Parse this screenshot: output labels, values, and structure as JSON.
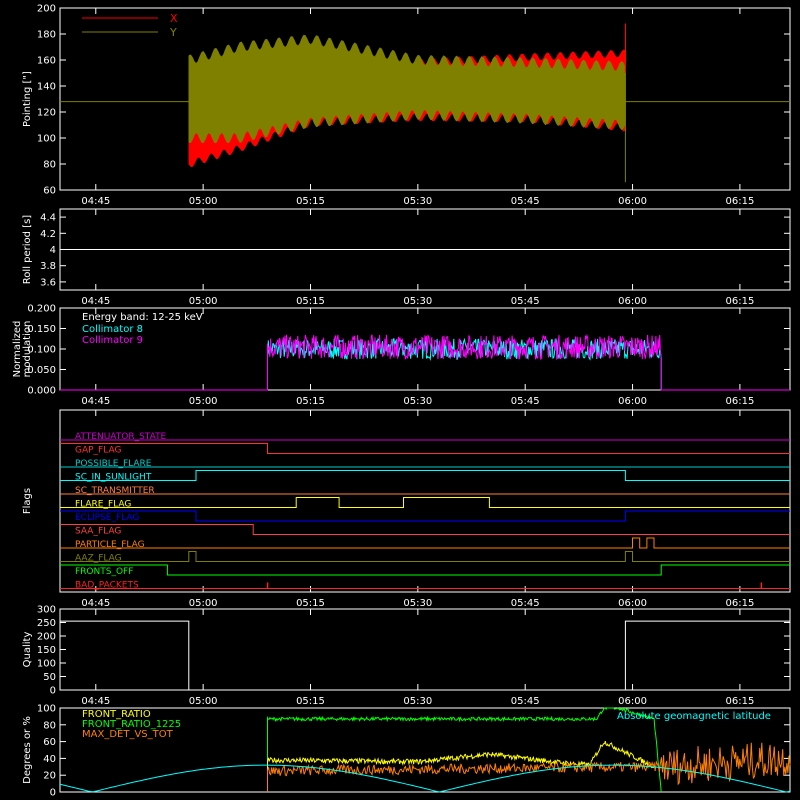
{
  "chart_data": [
    {
      "id": "pointing",
      "type": "area",
      "ylabel": "Pointing [\"]",
      "ylim": [
        60,
        200
      ],
      "yticks": [
        60,
        80,
        100,
        120,
        140,
        160,
        180,
        200
      ],
      "xticks": [
        "04:45",
        "05:00",
        "05:15",
        "05:30",
        "05:45",
        "06:00",
        "06:15"
      ],
      "legend": [
        {
          "name": "X",
          "color": "#ff0000"
        },
        {
          "name": "Y",
          "color": "#808000"
        }
      ],
      "baseline": 128,
      "active_range": [
        "04:58",
        "05:59"
      ],
      "series": [
        {
          "name": "X",
          "color": "#ff0000",
          "x": [
            "04:58",
            "05:05",
            "05:15",
            "05:30",
            "05:45",
            "05:59"
          ],
          "upper": [
            145,
            150,
            155,
            158,
            162,
            165
          ],
          "lower": [
            80,
            92,
            112,
            116,
            115,
            108
          ]
        },
        {
          "name": "Y",
          "color": "#808000",
          "x": [
            "04:58",
            "05:05",
            "05:15",
            "05:30",
            "05:45",
            "05:59"
          ],
          "upper": [
            160,
            170,
            176,
            160,
            158,
            155
          ],
          "lower": [
            100,
            100,
            112,
            118,
            115,
            110
          ]
        }
      ]
    },
    {
      "id": "roll",
      "type": "line",
      "ylabel": "Roll period [s]",
      "ylim": [
        3.5,
        4.5
      ],
      "yticks": [
        3.6,
        3.8,
        4.0,
        4.2,
        4.4
      ],
      "xticks": [
        "04:45",
        "05:00",
        "05:15",
        "05:30",
        "05:45",
        "06:00",
        "06:15"
      ],
      "series": [
        {
          "name": "",
          "color": "#ffffff",
          "x": [
            "04:40",
            "06:22"
          ],
          "y": [
            4.0,
            4.0
          ]
        }
      ]
    },
    {
      "id": "modulation",
      "type": "line",
      "ylabel": "Normalized modulation",
      "ylim": [
        0.0,
        0.2
      ],
      "yticks": [
        0.0,
        0.05,
        0.1,
        0.15,
        0.2
      ],
      "ytick_labels": [
        "0.000",
        "0.050",
        "0.100",
        "0.150",
        "0.200"
      ],
      "xticks": [
        "04:45",
        "05:00",
        "05:15",
        "05:30",
        "05:45",
        "06:00",
        "06:15"
      ],
      "annotation": "Energy band: 12-25 keV",
      "legend": [
        {
          "name": "Collimator 8",
          "color": "#00ffff"
        },
        {
          "name": "Collimator 9",
          "color": "#ff00ff"
        }
      ],
      "active_range": [
        "05:09",
        "06:04"
      ],
      "series": [
        {
          "name": "Collimator 8",
          "color": "#00ffff",
          "mean": 0.1,
          "spread": 0.025
        },
        {
          "name": "Collimator 9",
          "color": "#ff00ff",
          "mean": 0.105,
          "spread": 0.03
        }
      ]
    },
    {
      "id": "flags",
      "type": "line",
      "ylabel": "Flags",
      "xticks": [
        "04:45",
        "05:00",
        "05:15",
        "05:30",
        "05:45",
        "06:00",
        "06:15"
      ],
      "flags": [
        {
          "name": "ATTENUATOR_STATE",
          "color": "#cc00cc",
          "segments": [
            [
              "04:40",
              "06:22",
              0
            ]
          ]
        },
        {
          "name": "GAP_FLAG",
          "color": "#ff3030",
          "segments": [
            [
              "04:40",
              "05:09",
              1
            ],
            [
              "05:09",
              "06:22",
              0
            ]
          ]
        },
        {
          "name": "POSSIBLE_FLARE",
          "color": "#00cccc",
          "segments": [
            [
              "04:40",
              "06:22",
              0
            ]
          ]
        },
        {
          "name": "SC_IN_SUNLIGHT",
          "color": "#00ffff",
          "segments": [
            [
              "04:40",
              "04:59",
              0
            ],
            [
              "04:59",
              "05:59",
              1
            ],
            [
              "05:59",
              "06:22",
              0
            ]
          ]
        },
        {
          "name": "SC_TRANSMITTER",
          "color": "#ff8040",
          "segments": [
            [
              "04:40",
              "06:22",
              0
            ]
          ]
        },
        {
          "name": "FLARE_FLAG",
          "color": "#ffff00",
          "segments": [
            [
              "04:40",
              "05:13",
              0
            ],
            [
              "05:13",
              "05:19",
              1
            ],
            [
              "05:19",
              "05:28",
              0
            ],
            [
              "05:28",
              "05:40",
              1
            ],
            [
              "05:40",
              "06:22",
              0
            ]
          ]
        },
        {
          "name": "ECLIPSE_FLAG",
          "color": "#0000ff",
          "segments": [
            [
              "04:40",
              "04:59",
              1
            ],
            [
              "04:59",
              "05:59",
              0
            ],
            [
              "05:59",
              "06:22",
              1
            ]
          ]
        },
        {
          "name": "SAA_FLAG",
          "color": "#ff4040",
          "segments": [
            [
              "04:40",
              "05:07",
              1
            ],
            [
              "05:07",
              "06:22",
              0
            ]
          ]
        },
        {
          "name": "PARTICLE_FLAG",
          "color": "#ff8000",
          "segments": [
            [
              "04:40",
              "06:00",
              0
            ],
            [
              "06:00",
              "06:01",
              1
            ],
            [
              "06:01",
              "06:02",
              0
            ],
            [
              "06:02",
              "06:03",
              1
            ],
            [
              "06:03",
              "06:22",
              0
            ]
          ]
        },
        {
          "name": "AAZ_FLAG",
          "color": "#808000",
          "segments": [
            [
              "04:40",
              "04:58",
              0
            ],
            [
              "04:58",
              "04:59",
              1
            ],
            [
              "04:59",
              "05:59",
              0
            ],
            [
              "05:59",
              "05:60",
              1
            ],
            [
              "06:00",
              "06:22",
              0
            ]
          ]
        },
        {
          "name": "FRONTS_OFF",
          "color": "#00ff00",
          "segments": [
            [
              "04:40",
              "04:55",
              1
            ],
            [
              "04:55",
              "06:04",
              0
            ],
            [
              "06:04",
              "06:22",
              1
            ]
          ]
        },
        {
          "name": "BAD_PACKETS",
          "color": "#ff2020",
          "segments": [
            [
              "04:40",
              "06:22",
              0
            ]
          ],
          "spikes": [
            "05:09",
            "06:18"
          ]
        }
      ]
    },
    {
      "id": "quality",
      "type": "line",
      "ylabel": "Quality",
      "ylim": [
        0,
        300
      ],
      "yticks": [
        0,
        50,
        100,
        150,
        200,
        250,
        300
      ],
      "xticks": [
        "04:45",
        "05:00",
        "05:15",
        "05:30",
        "05:45",
        "06:00",
        "06:15"
      ],
      "series": [
        {
          "name": "",
          "color": "#ffffff",
          "x": [
            "04:40",
            "04:58",
            "04:58",
            "05:59",
            "05:59",
            "06:22"
          ],
          "y": [
            255,
            255,
            0,
            0,
            255,
            255
          ]
        }
      ]
    },
    {
      "id": "ratios",
      "type": "line",
      "ylabel": "Degrees or %",
      "ylim": [
        0,
        100
      ],
      "yticks": [
        0,
        20,
        40,
        60,
        80,
        100
      ],
      "legend": [
        {
          "name": "FRONT_RATIO",
          "color": "#ffff00"
        },
        {
          "name": "FRONT_RATIO_1225",
          "color": "#00ff00"
        },
        {
          "name": "MAX_DET_VS_TOT",
          "color": "#ff8000"
        }
      ],
      "annotation": "Absolute geomagnetic latitude",
      "annotation_color": "#00ffff",
      "series": [
        {
          "name": "FRONT_RATIO_1225",
          "color": "#00ff00",
          "x": [
            "05:09",
            "05:55",
            "05:56",
            "05:58",
            "06:03",
            "06:04"
          ],
          "y": [
            87,
            87,
            100,
            100,
            87,
            0
          ]
        },
        {
          "name": "FRONT_RATIO",
          "color": "#ffff00",
          "x": [
            "05:09",
            "05:30",
            "05:40",
            "05:50",
            "05:54",
            "05:56",
            "06:03"
          ],
          "y": [
            38,
            36,
            45,
            35,
            32,
            60,
            30
          ]
        },
        {
          "name": "MAX_DET_VS_TOT",
          "color": "#ff8000",
          "x": [
            "05:09",
            "05:40",
            "06:04",
            "06:22"
          ],
          "y": [
            25,
            28,
            30,
            40
          ]
        },
        {
          "name": "Absolute geomagnetic latitude",
          "color": "#00ffff",
          "x": [
            "04:40",
            "04:59",
            "05:20",
            "05:33",
            "05:50",
            "06:07",
            "06:22"
          ],
          "y": [
            14,
            32,
            20,
            0,
            30,
            0,
            20
          ]
        }
      ]
    }
  ]
}
